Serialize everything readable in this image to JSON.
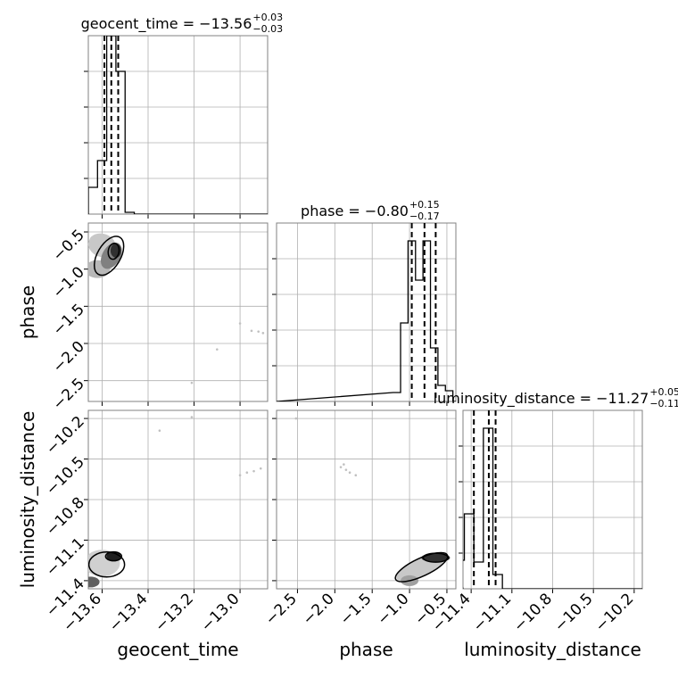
{
  "chart_data": {
    "type": "corner",
    "parameters": [
      "geocent_time",
      "phase",
      "luminosity_distance"
    ],
    "grid": true,
    "titles": [
      {
        "parameter": "geocent_time",
        "label": "geocent_time = −13.56",
        "plus": "+0.03",
        "minus": "−0.03"
      },
      {
        "parameter": "phase",
        "label": "phase = −0.80",
        "plus": "+0.15",
        "minus": "−0.17"
      },
      {
        "parameter": "luminosity_distance",
        "label": "luminosity_distance = −11.27",
        "plus": "+0.05",
        "minus": "−0.11"
      }
    ],
    "axis_labels": {
      "x": [
        "geocent_time",
        "phase",
        "luminosity_distance"
      ],
      "y": [
        "phase",
        "luminosity_distance"
      ]
    },
    "ranges": {
      "geocent_time": [
        -13.66,
        -12.88
      ],
      "phase": [
        -2.78,
        -0.38
      ],
      "luminosity_distance": [
        -11.46,
        -10.14
      ]
    },
    "ticks": {
      "geocent_time": {
        "values": [
          -13.6,
          -13.4,
          -13.2,
          -13.0
        ],
        "labels": [
          "−13.6",
          "−13.4",
          "−13.2",
          "−13.0"
        ]
      },
      "phase": {
        "values": [
          -2.5,
          -2.0,
          -1.5,
          -1.0,
          -0.5
        ],
        "labels": [
          "−2.5",
          "−2.0",
          "−1.5",
          "−1.0",
          "−0.5"
        ]
      },
      "luminosity_distance": {
        "values": [
          -11.4,
          -11.1,
          -10.8,
          -10.5,
          -10.2
        ],
        "labels": [
          "−11.4",
          "−11.1",
          "−10.8",
          "−10.5",
          "−10.2"
        ]
      }
    },
    "quantiles": {
      "geocent_time": [
        -13.59,
        -13.56,
        -13.53
      ],
      "phase": [
        -0.97,
        -0.8,
        -0.65
      ],
      "luminosity_distance": [
        -11.38,
        -11.27,
        -11.22
      ]
    },
    "histograms": {
      "geocent_time": {
        "edges": [
          -13.66,
          -13.62,
          -13.58,
          -13.54,
          -13.5,
          -13.46
        ],
        "heights": [
          0.15,
          0.3,
          1.0,
          0.8,
          0.01
        ]
      },
      "phase": {
        "edges": [
          -1.22,
          -1.12,
          -1.02,
          -0.92,
          -0.82,
          -0.72,
          -0.62,
          -0.52,
          -0.42
        ],
        "heights": [
          0.05,
          0.44,
          0.9,
          0.68,
          0.9,
          0.3,
          0.09,
          0.06
        ]
      },
      "luminosity_distance": {
        "edges": [
          -11.52,
          -11.45,
          -11.38,
          -11.31,
          -11.24,
          -11.17,
          -11.1,
          -11.03
        ],
        "heights": [
          0.16,
          0.42,
          0.15,
          0.9,
          0.08,
          0.0,
          0.0
        ]
      }
    },
    "scatter_outliers": [
      {
        "x": "geocent_time",
        "y": "phase",
        "points": [
          [
            -13.0,
            -1.73
          ],
          [
            -12.95,
            -1.83
          ],
          [
            -12.92,
            -1.84
          ],
          [
            -12.9,
            -1.86
          ],
          [
            -13.1,
            -2.08
          ],
          [
            -13.21,
            -2.53
          ]
        ]
      },
      {
        "x": "geocent_time",
        "y": "luminosity_distance",
        "points": [
          [
            -13.35,
            -10.29
          ],
          [
            -13.21,
            -10.19
          ],
          [
            -13.0,
            -10.62
          ],
          [
            -12.97,
            -10.6
          ],
          [
            -12.94,
            -10.59
          ],
          [
            -12.91,
            -10.57
          ]
        ]
      },
      {
        "x": "phase",
        "y": "luminosity_distance",
        "points": [
          [
            -2.52,
            -10.2
          ],
          [
            -1.92,
            -10.56
          ],
          [
            -1.88,
            -10.54
          ],
          [
            -1.85,
            -10.58
          ],
          [
            -1.8,
            -10.6
          ],
          [
            -1.72,
            -10.62
          ]
        ]
      }
    ]
  }
}
